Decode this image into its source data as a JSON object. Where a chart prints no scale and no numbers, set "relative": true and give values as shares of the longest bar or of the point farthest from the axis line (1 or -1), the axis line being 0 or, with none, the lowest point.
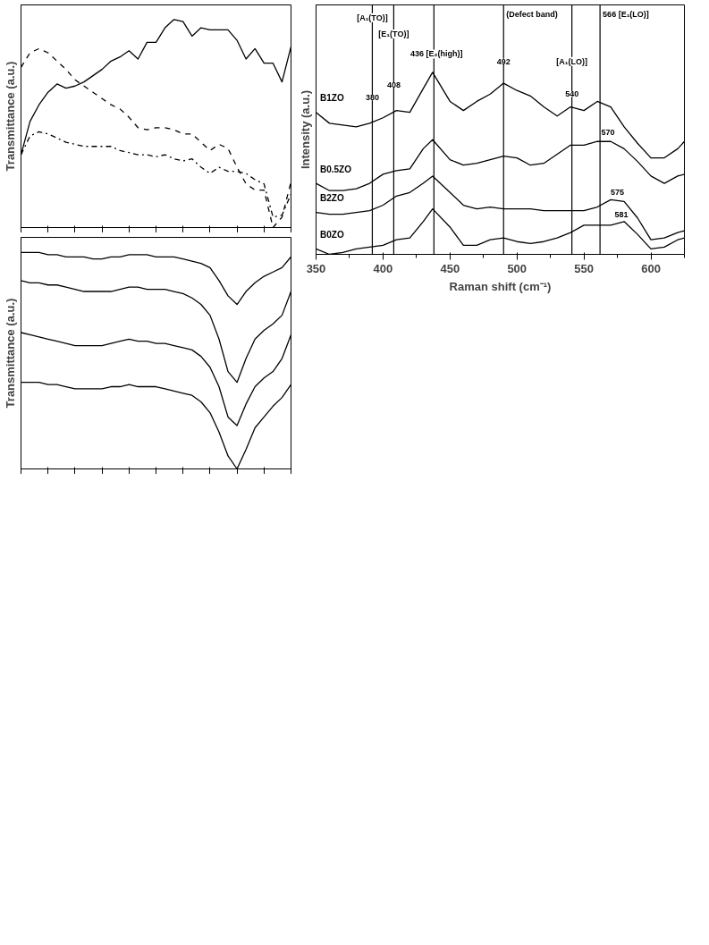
{
  "chart_data": [
    {
      "type": "line",
      "ylabel": "Transmittance (a.u.)",
      "relative": true,
      "grid": false,
      "categories": [
        null,
        null,
        null,
        null,
        null,
        null,
        null,
        null,
        null,
        null,
        null,
        null,
        null,
        null,
        null,
        null,
        null,
        null,
        null,
        null,
        null,
        null,
        null,
        null,
        null,
        null,
        null,
        null,
        null,
        null,
        null
      ],
      "series": [
        {
          "color": "#000000",
          "line_style": "dashdot",
          "values": [
            0.35,
            0.44,
            0.46,
            0.45,
            0.43,
            0.41,
            0.4,
            0.39,
            0.39,
            0.39,
            0.39,
            0.37,
            0.36,
            0.35,
            0.35,
            0.34,
            0.35,
            0.33,
            0.32,
            0.33,
            0.29,
            0.26,
            0.29,
            0.27,
            0.27,
            0.26,
            0.23,
            0.21,
            0.05,
            0.06,
            0.16
          ]
        },
        {
          "color": "#000000",
          "line_style": "solid",
          "values": [
            0.35,
            0.51,
            0.59,
            0.65,
            0.69,
            0.67,
            0.68,
            0.7,
            0.73,
            0.76,
            0.8,
            0.82,
            0.85,
            0.81,
            0.89,
            0.89,
            0.96,
            1.0,
            0.99,
            0.92,
            0.96,
            0.95,
            0.95,
            0.95,
            0.9,
            0.81,
            0.86,
            0.79,
            0.79,
            0.7,
            0.87
          ]
        },
        {
          "color": "#000000",
          "line_style": "dashed",
          "values": [
            0.77,
            0.84,
            0.86,
            0.84,
            0.8,
            0.76,
            0.71,
            0.68,
            0.65,
            0.62,
            0.59,
            0.57,
            0.53,
            0.48,
            0.47,
            0.48,
            0.48,
            0.47,
            0.45,
            0.45,
            0.41,
            0.37,
            0.4,
            0.38,
            0.29,
            0.21,
            0.18,
            0.18,
            0.0,
            0.05,
            0.22
          ]
        }
      ]
    },
    {
      "type": "line",
      "ylabel": "Transmittance (a.u.)",
      "relative": true,
      "grid": false,
      "categories": [
        null,
        null,
        null,
        null,
        null,
        null,
        null,
        null,
        null,
        null,
        null,
        null,
        null,
        null,
        null,
        null,
        null,
        null,
        null,
        null,
        null,
        null,
        null,
        null,
        null,
        null,
        null,
        null,
        null,
        null,
        null
      ],
      "series": [
        {
          "color": "#000000",
          "values": [
            1.0,
            1.0,
            1.0,
            0.99,
            0.99,
            0.98,
            0.98,
            0.98,
            0.97,
            0.97,
            0.98,
            0.98,
            0.99,
            0.99,
            0.99,
            0.98,
            0.98,
            0.98,
            0.97,
            0.96,
            0.95,
            0.93,
            0.87,
            0.8,
            0.76,
            0.82,
            0.86,
            0.89,
            0.91,
            0.93,
            0.98
          ]
        },
        {
          "color": "#000000",
          "values": [
            0.87,
            0.86,
            0.86,
            0.85,
            0.85,
            0.84,
            0.83,
            0.82,
            0.82,
            0.82,
            0.82,
            0.83,
            0.84,
            0.84,
            0.83,
            0.83,
            0.83,
            0.82,
            0.81,
            0.79,
            0.76,
            0.71,
            0.6,
            0.45,
            0.4,
            0.51,
            0.6,
            0.64,
            0.67,
            0.71,
            0.82
          ]
        },
        {
          "color": "#000000",
          "values": [
            0.63,
            0.62,
            0.61,
            0.6,
            0.59,
            0.58,
            0.57,
            0.57,
            0.57,
            0.57,
            0.58,
            0.59,
            0.6,
            0.59,
            0.59,
            0.58,
            0.58,
            0.57,
            0.56,
            0.55,
            0.52,
            0.47,
            0.38,
            0.24,
            0.2,
            0.3,
            0.38,
            0.42,
            0.45,
            0.51,
            0.62
          ]
        },
        {
          "color": "#000000",
          "values": [
            0.4,
            0.4,
            0.4,
            0.39,
            0.39,
            0.38,
            0.37,
            0.37,
            0.37,
            0.37,
            0.38,
            0.38,
            0.39,
            0.38,
            0.38,
            0.38,
            0.37,
            0.36,
            0.35,
            0.34,
            0.31,
            0.26,
            0.17,
            0.06,
            0.0,
            0.09,
            0.19,
            0.24,
            0.29,
            0.33,
            0.39
          ]
        }
      ]
    },
    {
      "type": "line",
      "xlabel": "Raman shift (cm⁻¹)",
      "ylabel": "Intensity (a.u.)",
      "relative": true,
      "grid": false,
      "xlim": [
        350,
        625
      ],
      "xticks": [
        350,
        400,
        450,
        500,
        550,
        600
      ],
      "x": [
        350,
        360,
        370,
        380,
        390,
        400,
        410,
        420,
        430,
        437,
        450,
        460,
        470,
        480,
        490,
        500,
        510,
        520,
        530,
        540,
        550,
        560,
        570,
        580,
        590,
        600,
        610,
        620,
        625
      ],
      "series": [
        {
          "name": "B1ZO",
          "color": "#000000",
          "values": [
            0.78,
            0.72,
            0.71,
            0.7,
            0.72,
            0.75,
            0.79,
            0.78,
            0.91,
            1.0,
            0.84,
            0.79,
            0.84,
            0.88,
            0.94,
            0.9,
            0.87,
            0.81,
            0.76,
            0.81,
            0.79,
            0.84,
            0.81,
            0.7,
            0.61,
            0.53,
            0.53,
            0.58,
            0.62
          ]
        },
        {
          "name": "B0.5ZO",
          "color": "#000000",
          "values": [
            0.39,
            0.35,
            0.35,
            0.36,
            0.39,
            0.44,
            0.46,
            0.47,
            0.58,
            0.63,
            0.52,
            0.49,
            0.5,
            0.52,
            0.54,
            0.53,
            0.49,
            0.5,
            0.55,
            0.6,
            0.6,
            0.62,
            0.62,
            0.58,
            0.51,
            0.43,
            0.39,
            0.43,
            0.44
          ]
        },
        {
          "name": "B2ZO",
          "color": "#000000",
          "values": [
            0.23,
            0.22,
            0.22,
            0.23,
            0.24,
            0.27,
            0.32,
            0.34,
            0.39,
            0.43,
            0.34,
            0.27,
            0.25,
            0.26,
            0.25,
            0.25,
            0.25,
            0.24,
            0.24,
            0.24,
            0.24,
            0.26,
            0.3,
            0.29,
            0.2,
            0.08,
            0.09,
            0.12,
            0.13
          ]
        },
        {
          "name": "B0ZO",
          "color": "#000000",
          "values": [
            0.03,
            0.0,
            0.01,
            0.03,
            0.04,
            0.05,
            0.08,
            0.09,
            0.18,
            0.25,
            0.15,
            0.05,
            0.05,
            0.08,
            0.09,
            0.07,
            0.06,
            0.07,
            0.09,
            0.12,
            0.16,
            0.16,
            0.16,
            0.18,
            0.11,
            0.03,
            0.04,
            0.08,
            0.09
          ]
        }
      ],
      "ref_lines": [
        {
          "axis": "x",
          "value": 392
        },
        {
          "axis": "x",
          "value": 408
        },
        {
          "axis": "x",
          "value": 438
        },
        {
          "axis": "x",
          "value": 490,
          "label": "(Defect band)"
        },
        {
          "axis": "x",
          "value": 541
        },
        {
          "axis": "x",
          "value": 562,
          "label": "566 [E₁(LO)]"
        }
      ],
      "annotations": [
        {
          "text": "380",
          "x": 392,
          "y": 0.86
        },
        {
          "text": "408",
          "x": 408,
          "y": 0.93
        },
        {
          "text": "[A₁(TO)]",
          "x": 392,
          "y": 1.3
        },
        {
          "text": "[E₁(TO)]",
          "x": 408,
          "y": 1.21
        },
        {
          "text": "436 [E₂(high)]",
          "x": 440,
          "y": 1.1
        },
        {
          "text": "492",
          "x": 490,
          "y": 1.06
        },
        {
          "text": "[A₁(LO)]",
          "x": 541,
          "y": 1.06
        },
        {
          "text": "540",
          "x": 541,
          "y": 0.88
        },
        {
          "text": "570",
          "x": 568,
          "y": 0.67
        },
        {
          "text": "575",
          "x": 575,
          "y": 0.34
        },
        {
          "text": "581",
          "x": 578,
          "y": 0.22
        }
      ]
    }
  ]
}
